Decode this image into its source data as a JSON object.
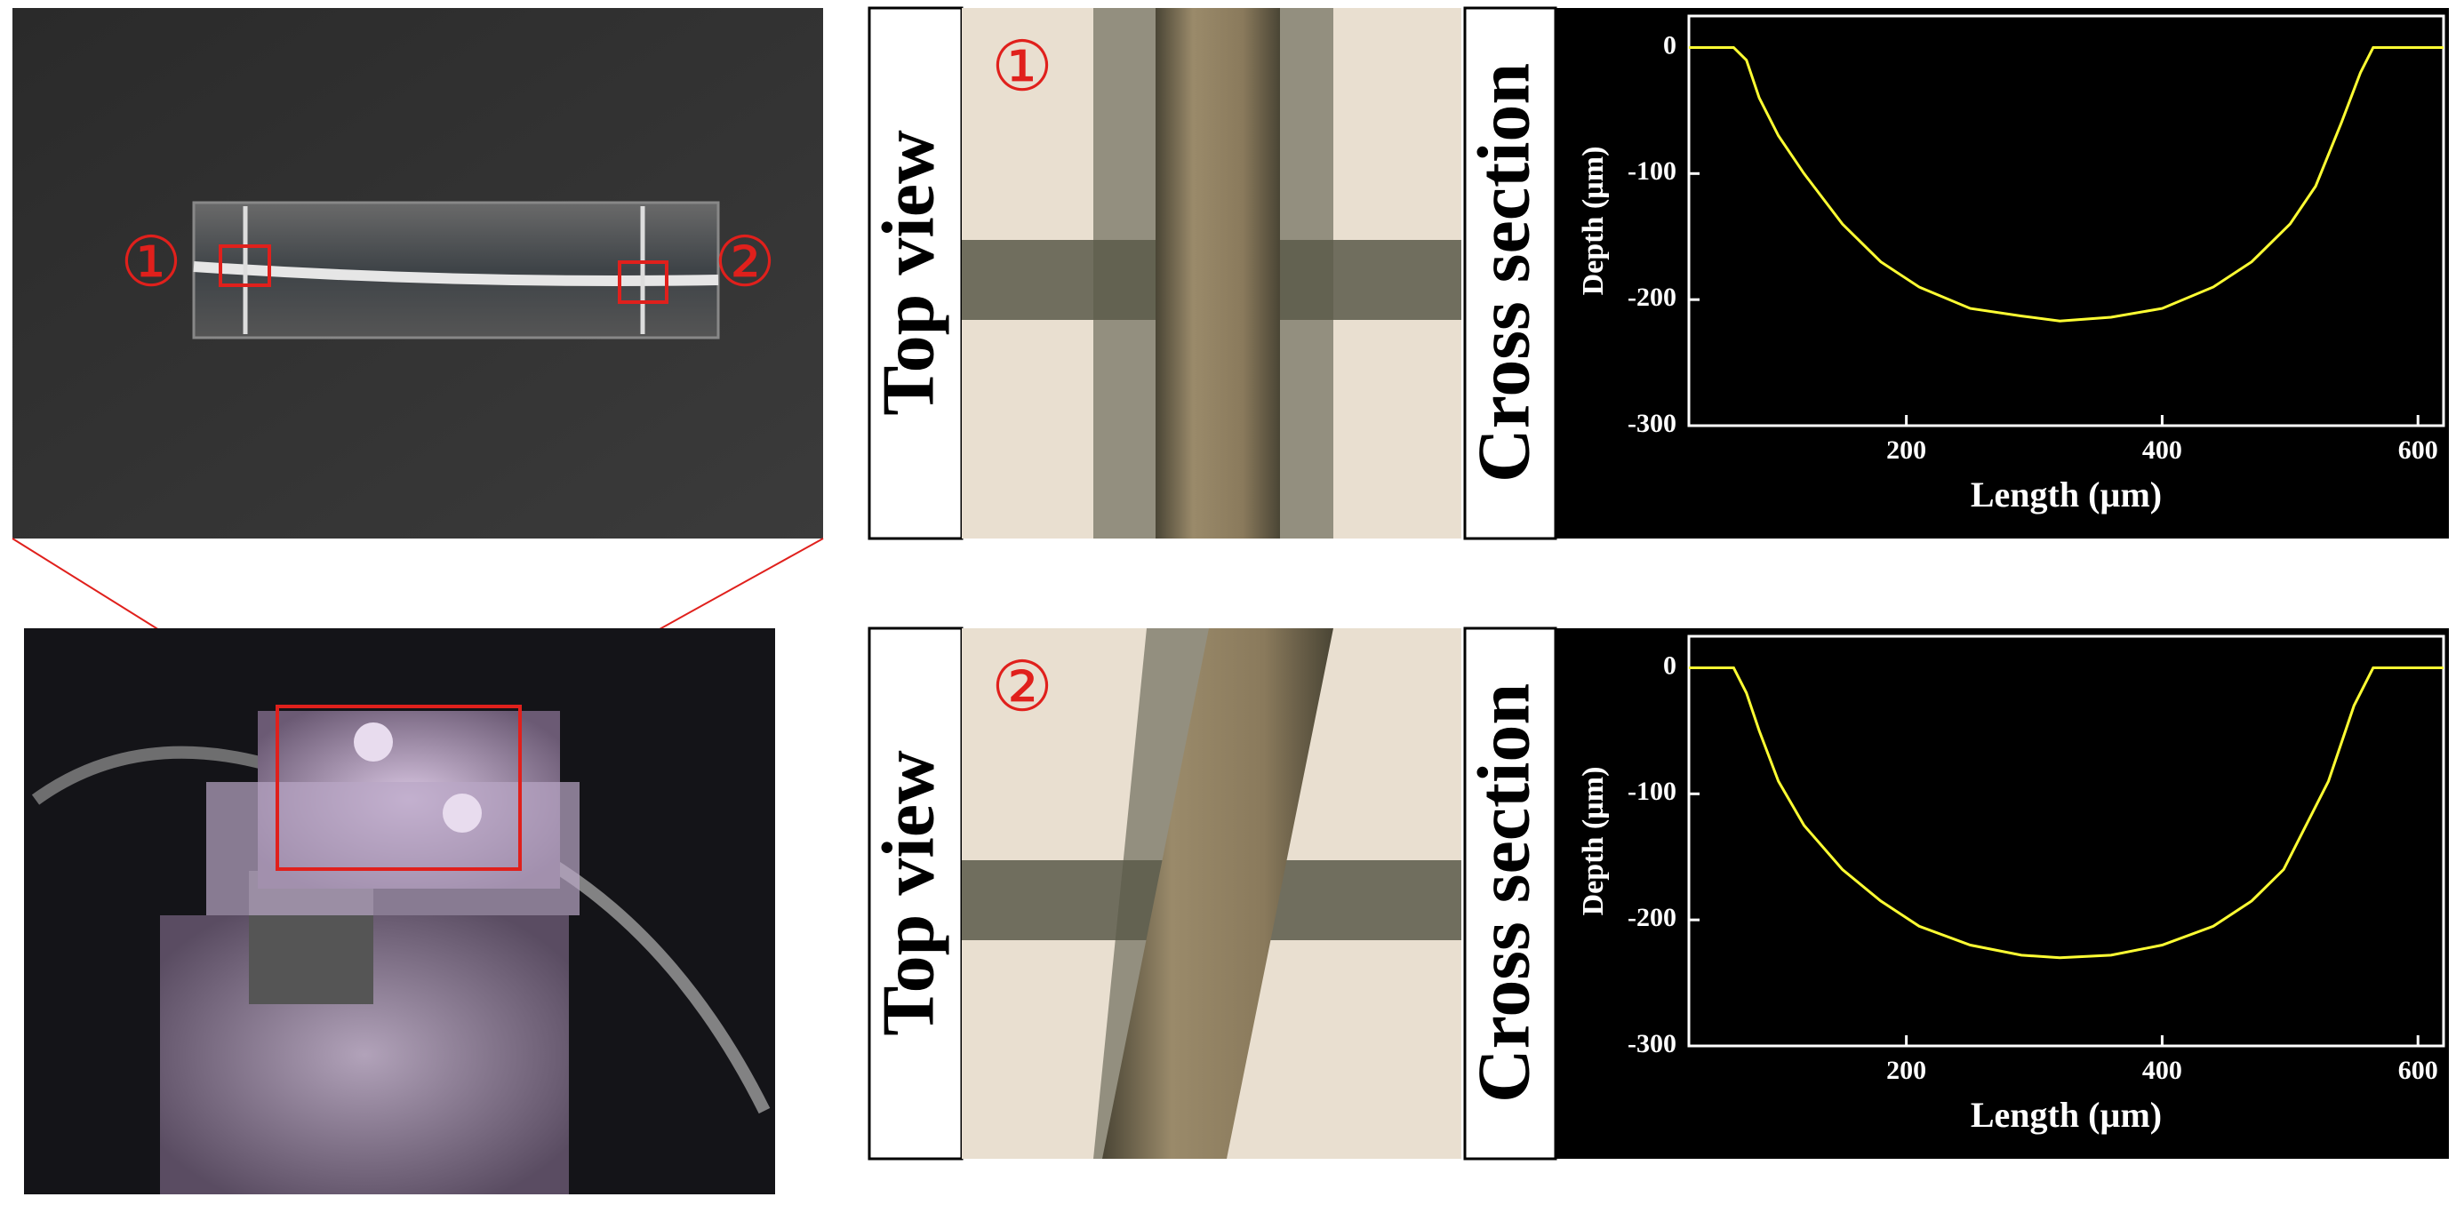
{
  "photo": {
    "markers": [
      "①",
      "②"
    ]
  },
  "panels": [
    {
      "marker": "①",
      "top_view": "Top view",
      "cross_section": "Cross section"
    },
    {
      "marker": "②",
      "top_view": "Top view",
      "cross_section": "Cross section"
    }
  ],
  "chart_data": [
    {
      "type": "line",
      "xlabel": "Length (µm)",
      "ylabel": "Depth (µm)",
      "color": "#ffff33",
      "x": [
        30,
        65,
        75,
        85,
        100,
        120,
        150,
        180,
        210,
        250,
        290,
        320,
        360,
        400,
        440,
        470,
        500,
        520,
        540,
        555,
        565,
        620
      ],
      "values": [
        0,
        0,
        -10,
        -40,
        -70,
        -100,
        -140,
        -170,
        -190,
        -207,
        -213,
        -217,
        -214,
        -207,
        -190,
        -170,
        -140,
        -110,
        -60,
        -20,
        0,
        0
      ],
      "xlim": [
        30,
        620
      ],
      "ylim": [
        -300,
        25
      ],
      "xticks": [
        200,
        400,
        600
      ],
      "yticks": [
        0,
        -100,
        -200,
        -300
      ]
    },
    {
      "type": "line",
      "xlabel": "Length (µm)",
      "ylabel": "Depth (µm)",
      "color": "#ffff33",
      "x": [
        30,
        65,
        75,
        85,
        100,
        120,
        150,
        180,
        210,
        250,
        290,
        320,
        360,
        400,
        440,
        470,
        495,
        510,
        530,
        550,
        565,
        620
      ],
      "values": [
        0,
        0,
        -20,
        -50,
        -90,
        -125,
        -160,
        -185,
        -205,
        -220,
        -228,
        -230,
        -228,
        -220,
        -205,
        -185,
        -160,
        -130,
        -90,
        -30,
        0,
        0
      ],
      "xlim": [
        30,
        620
      ],
      "ylim": [
        -300,
        25
      ],
      "xticks": [
        200,
        400,
        600
      ],
      "yticks": [
        0,
        -100,
        -200,
        -300
      ]
    }
  ]
}
